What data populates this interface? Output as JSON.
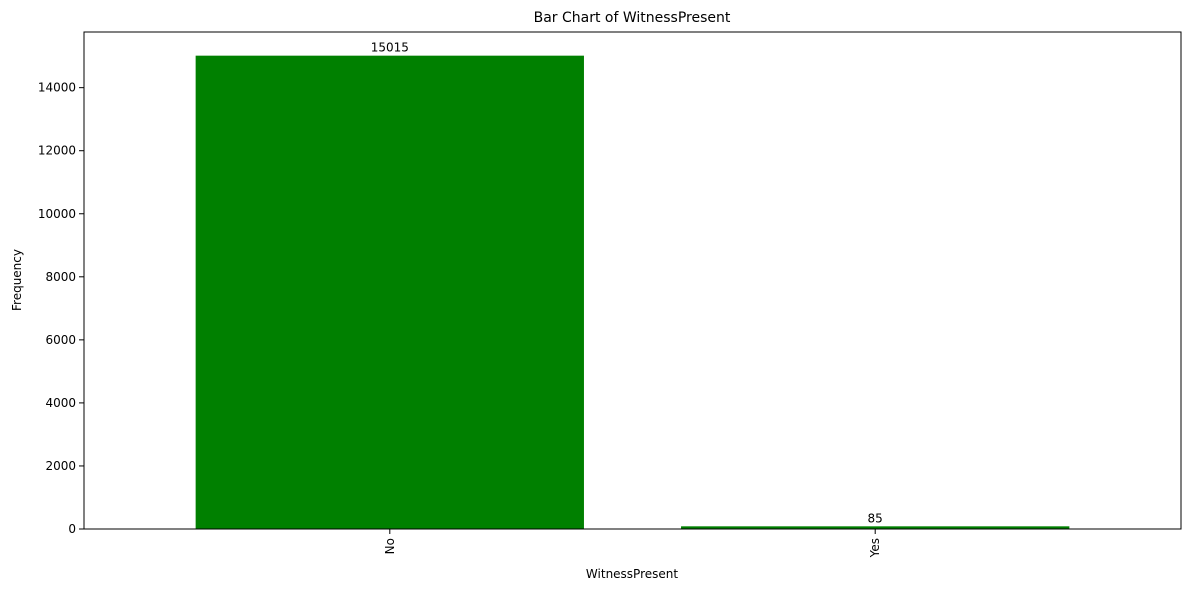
{
  "chart_data": {
    "type": "bar",
    "title": "Bar Chart of WitnessPresent",
    "xlabel": "WitnessPresent",
    "ylabel": "Frequency",
    "categories": [
      "No",
      "Yes"
    ],
    "values": [
      15015,
      85
    ],
    "ylim": [
      0,
      15765.75
    ],
    "yticks": [
      0,
      2000,
      4000,
      6000,
      8000,
      10000,
      12000,
      14000
    ],
    "x_tick_rotation": 90,
    "bar_color": "#008000",
    "grid": false,
    "legend": "none"
  }
}
